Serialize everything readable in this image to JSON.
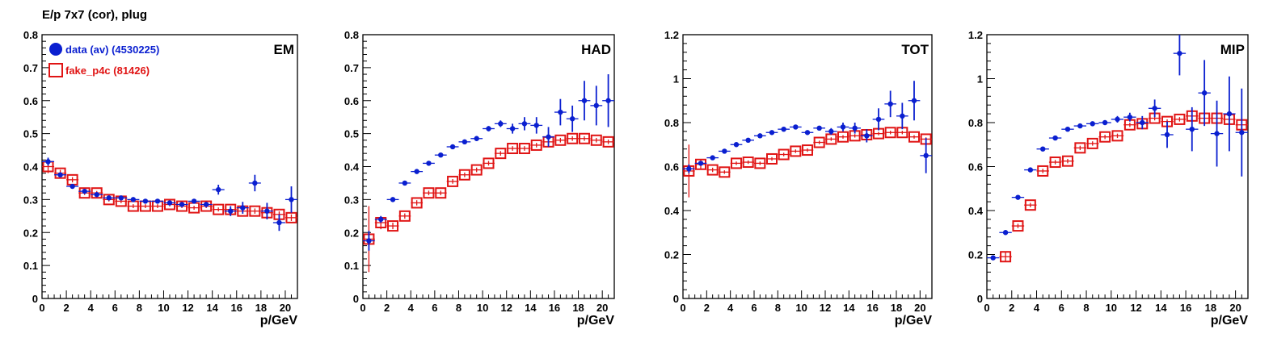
{
  "title": "E/p 7x7 (cor), plug",
  "colors": {
    "data": "#0a1fd0",
    "fake": "#e01414",
    "axis": "#000000"
  },
  "legend": {
    "placement": "top-left of first panel",
    "entries": [
      {
        "label": "data (av) (4530225)",
        "marker": "filled-circle",
        "color": "#0a1fd0"
      },
      {
        "label": "fake_p4c (81426)",
        "marker": "open-square",
        "color": "#e01414"
      }
    ]
  },
  "chart_data": [
    {
      "type": "scatter",
      "label": "EM",
      "xlabel": "p/GeV",
      "xlim": [
        0,
        21
      ],
      "ylim": [
        0,
        0.8
      ],
      "xticks": [
        0,
        2,
        4,
        6,
        8,
        10,
        12,
        14,
        16,
        18,
        20
      ],
      "yticks": [
        0,
        0.1,
        0.2,
        0.3,
        0.4,
        0.5,
        0.6,
        0.7,
        0.8
      ],
      "ytick_labels": [
        "0",
        "0.1",
        "0.2",
        "0.3",
        "0.4",
        "0.5",
        "0.6",
        "0.7",
        "0.8"
      ],
      "series": [
        {
          "name": "data (av) (4530225)",
          "x": [
            0.5,
            1.5,
            2.5,
            3.5,
            4.5,
            5.5,
            6.5,
            7.5,
            8.5,
            9.5,
            10.5,
            11.5,
            12.5,
            13.5,
            14.5,
            15.5,
            16.5,
            17.5,
            18.5,
            19.5,
            20.5
          ],
          "y": [
            0.415,
            0.375,
            0.34,
            0.325,
            0.315,
            0.305,
            0.305,
            0.3,
            0.295,
            0.295,
            0.29,
            0.285,
            0.295,
            0.285,
            0.33,
            0.265,
            0.275,
            0.35,
            0.265,
            0.23,
            0.3
          ],
          "yerr": [
            0.012,
            0.005,
            0.004,
            0.004,
            0.004,
            0.004,
            0.004,
            0.004,
            0.004,
            0.004,
            0.005,
            0.006,
            0.007,
            0.008,
            0.015,
            0.015,
            0.018,
            0.025,
            0.025,
            0.025,
            0.04
          ]
        },
        {
          "name": "fake_p4c (81426)",
          "x": [
            0.5,
            1.5,
            2.5,
            3.5,
            4.5,
            5.5,
            6.5,
            7.5,
            8.5,
            9.5,
            10.5,
            11.5,
            12.5,
            13.5,
            14.5,
            15.5,
            16.5,
            17.5,
            18.5,
            19.5,
            20.5
          ],
          "y": [
            0.4,
            0.38,
            0.36,
            0.32,
            0.32,
            0.3,
            0.295,
            0.28,
            0.28,
            0.28,
            0.285,
            0.28,
            0.275,
            0.28,
            0.27,
            0.27,
            0.265,
            0.265,
            0.26,
            0.255,
            0.245
          ],
          "yerr": [
            0.02,
            0.01,
            0.008,
            0.006,
            0.006,
            0.006,
            0.006,
            0.006,
            0.006,
            0.006,
            0.006,
            0.006,
            0.006,
            0.006,
            0.006,
            0.007,
            0.007,
            0.008,
            0.008,
            0.009,
            0.01
          ]
        }
      ]
    },
    {
      "type": "scatter",
      "label": "HAD",
      "xlabel": "p/GeV",
      "xlim": [
        0,
        21
      ],
      "ylim": [
        0,
        0.8
      ],
      "xticks": [
        0,
        2,
        4,
        6,
        8,
        10,
        12,
        14,
        16,
        18,
        20
      ],
      "yticks": [
        0,
        0.1,
        0.2,
        0.3,
        0.4,
        0.5,
        0.6,
        0.7,
        0.8
      ],
      "ytick_labels": [
        "0",
        "0.1",
        "0.2",
        "0.3",
        "0.4",
        "0.5",
        "0.6",
        "0.7",
        "0.8"
      ],
      "series": [
        {
          "name": "data (av) (4530225)",
          "x": [
            0.5,
            1.5,
            2.5,
            3.5,
            4.5,
            5.5,
            6.5,
            7.5,
            8.5,
            9.5,
            10.5,
            11.5,
            12.5,
            13.5,
            14.5,
            15.5,
            16.5,
            17.5,
            18.5,
            19.5,
            20.5
          ],
          "y": [
            0.175,
            0.24,
            0.3,
            0.35,
            0.385,
            0.41,
            0.435,
            0.46,
            0.475,
            0.485,
            0.515,
            0.53,
            0.515,
            0.53,
            0.525,
            0.49,
            0.565,
            0.545,
            0.6,
            0.585,
            0.6
          ],
          "yerr": [
            0.03,
            0.01,
            0.005,
            0.005,
            0.005,
            0.005,
            0.005,
            0.006,
            0.006,
            0.007,
            0.008,
            0.01,
            0.015,
            0.02,
            0.025,
            0.03,
            0.04,
            0.04,
            0.06,
            0.06,
            0.08
          ]
        },
        {
          "name": "fake_p4c (81426)",
          "x": [
            0.5,
            1.5,
            2.5,
            3.5,
            4.5,
            5.5,
            6.5,
            7.5,
            8.5,
            9.5,
            10.5,
            11.5,
            12.5,
            13.5,
            14.5,
            15.5,
            16.5,
            17.5,
            18.5,
            19.5,
            20.5
          ],
          "y": [
            0.18,
            0.23,
            0.22,
            0.25,
            0.29,
            0.32,
            0.32,
            0.355,
            0.375,
            0.39,
            0.41,
            0.44,
            0.455,
            0.455,
            0.465,
            0.475,
            0.48,
            0.485,
            0.485,
            0.48,
            0.475
          ],
          "yerr": [
            0.1,
            0.02,
            0.01,
            0.008,
            0.008,
            0.007,
            0.007,
            0.007,
            0.007,
            0.007,
            0.007,
            0.007,
            0.007,
            0.007,
            0.007,
            0.007,
            0.007,
            0.007,
            0.007,
            0.007,
            0.007
          ]
        }
      ]
    },
    {
      "type": "scatter",
      "label": "TOT",
      "xlabel": "p/GeV",
      "xlim": [
        0,
        21
      ],
      "ylim": [
        0,
        1.2
      ],
      "xticks": [
        0,
        2,
        4,
        6,
        8,
        10,
        12,
        14,
        16,
        18,
        20
      ],
      "yticks": [
        0,
        0.2,
        0.4,
        0.6,
        0.8,
        1.0,
        1.2
      ],
      "ytick_labels": [
        "0",
        "0.2",
        "0.4",
        "0.6",
        "0.8",
        "1",
        "1.2"
      ],
      "series": [
        {
          "name": "data (av) (4530225)",
          "x": [
            0.5,
            1.5,
            2.5,
            3.5,
            4.5,
            5.5,
            6.5,
            7.5,
            8.5,
            9.5,
            10.5,
            11.5,
            12.5,
            13.5,
            14.5,
            15.5,
            16.5,
            17.5,
            18.5,
            19.5,
            20.5
          ],
          "y": [
            0.59,
            0.615,
            0.64,
            0.67,
            0.7,
            0.72,
            0.74,
            0.755,
            0.77,
            0.78,
            0.755,
            0.775,
            0.76,
            0.78,
            0.775,
            0.74,
            0.815,
            0.885,
            0.83,
            0.9,
            0.65
          ],
          "yerr": [
            0.02,
            0.01,
            0.005,
            0.005,
            0.005,
            0.005,
            0.005,
            0.005,
            0.006,
            0.007,
            0.008,
            0.01,
            0.015,
            0.02,
            0.025,
            0.03,
            0.05,
            0.06,
            0.06,
            0.09,
            0.08
          ]
        },
        {
          "name": "fake_p4c (81426)",
          "x": [
            0.5,
            1.5,
            2.5,
            3.5,
            4.5,
            5.5,
            6.5,
            7.5,
            8.5,
            9.5,
            10.5,
            11.5,
            12.5,
            13.5,
            14.5,
            15.5,
            16.5,
            17.5,
            18.5,
            19.5,
            20.5
          ],
          "y": [
            0.58,
            0.61,
            0.585,
            0.575,
            0.615,
            0.62,
            0.615,
            0.635,
            0.655,
            0.67,
            0.675,
            0.71,
            0.725,
            0.735,
            0.74,
            0.745,
            0.75,
            0.755,
            0.755,
            0.735,
            0.725
          ],
          "yerr": [
            0.12,
            0.02,
            0.01,
            0.008,
            0.008,
            0.008,
            0.008,
            0.008,
            0.008,
            0.008,
            0.008,
            0.008,
            0.008,
            0.008,
            0.008,
            0.008,
            0.008,
            0.008,
            0.008,
            0.008,
            0.008
          ]
        }
      ]
    },
    {
      "type": "scatter",
      "label": "MIP",
      "xlabel": "p/GeV",
      "xlim": [
        0,
        21
      ],
      "ylim": [
        0,
        1.2
      ],
      "xticks": [
        0,
        2,
        4,
        6,
        8,
        10,
        12,
        14,
        16,
        18,
        20
      ],
      "yticks": [
        0,
        0.2,
        0.4,
        0.6,
        0.8,
        1.0,
        1.2
      ],
      "ytick_labels": [
        "0",
        "0.2",
        "0.4",
        "0.6",
        "0.8",
        "1",
        "1.2"
      ],
      "series": [
        {
          "name": "data (av) (4530225)",
          "x": [
            0.5,
            1.5,
            2.5,
            3.5,
            4.5,
            5.5,
            6.5,
            7.5,
            8.5,
            9.5,
            10.5,
            11.5,
            12.5,
            13.5,
            14.5,
            15.5,
            16.5,
            17.5,
            18.5,
            19.5,
            20.5
          ],
          "y": [
            0.185,
            0.3,
            0.46,
            0.585,
            0.68,
            0.73,
            0.77,
            0.785,
            0.795,
            0.8,
            0.815,
            0.825,
            0.8,
            0.865,
            0.745,
            1.115,
            0.77,
            0.935,
            0.75,
            0.84,
            0.755
          ],
          "yerr": [
            0.008,
            0.006,
            0.006,
            0.006,
            0.006,
            0.006,
            0.006,
            0.007,
            0.008,
            0.009,
            0.015,
            0.02,
            0.03,
            0.04,
            0.06,
            0.1,
            0.1,
            0.15,
            0.15,
            0.17,
            0.2
          ]
        },
        {
          "name": "fake_p4c (81426)",
          "x": [
            0.5,
            1.5,
            2.5,
            3.5,
            4.5,
            5.5,
            6.5,
            7.5,
            8.5,
            9.5,
            10.5,
            11.5,
            12.5,
            13.5,
            14.5,
            15.5,
            16.5,
            17.5,
            18.5,
            19.5,
            20.5
          ],
          "y": [
            null,
            0.19,
            0.33,
            0.425,
            0.58,
            0.62,
            0.625,
            0.685,
            0.705,
            0.735,
            0.74,
            0.79,
            0.795,
            0.82,
            0.805,
            0.815,
            0.83,
            0.82,
            0.82,
            0.815,
            0.79
          ],
          "yerr": [
            null,
            0.02,
            0.01,
            0.01,
            0.01,
            0.01,
            0.01,
            0.01,
            0.01,
            0.01,
            0.01,
            0.01,
            0.01,
            0.01,
            0.01,
            0.01,
            0.01,
            0.01,
            0.01,
            0.01,
            0.01
          ]
        }
      ]
    }
  ]
}
